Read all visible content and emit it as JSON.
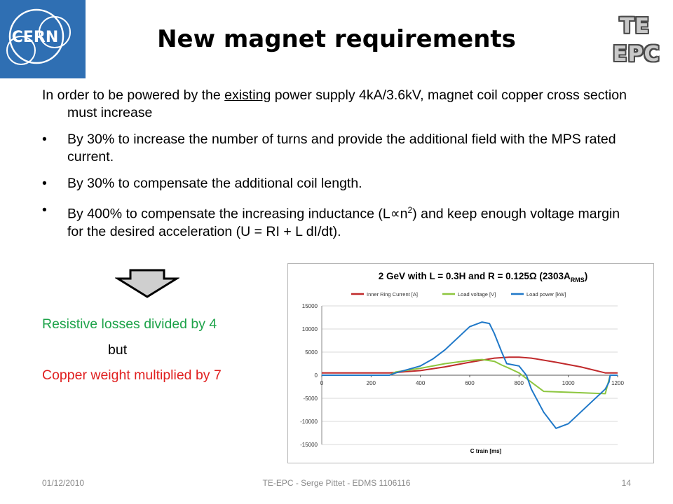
{
  "logos": {
    "cern_text": "CERN",
    "tepc_line1": "TE",
    "tepc_line2": "EPC"
  },
  "title": "New magnet requirements",
  "intro": {
    "before": "In order to be powered by the ",
    "underlined": "existing",
    "after": " power supply 4kA/3.6kV, magnet coil copper cross section must increase"
  },
  "bullets": [
    {
      "text": "By 30% to increase the number of turns and provide the additional field with the MPS rated current."
    },
    {
      "text": "By 30% to compensate the additional coil length."
    },
    {
      "before": "By 400% to compensate the increasing inductance (L",
      "symbol": "∝",
      "n": "n",
      "exp": "2",
      "after": ") and keep enough voltage margin for the desired acceleration (U = RI + L dI/dt)."
    }
  ],
  "bullet_char": "•",
  "results": {
    "line1": "Resistive losses divided by 4",
    "line2": "but",
    "line3": "Copper weight multiplied by 7",
    "line1_color": "#1ea34a",
    "line3_color": "#e02020"
  },
  "chart_data": {
    "type": "line",
    "title_main": "2 GeV with L = 0.3H and R = 0.125Ω (2303A",
    "title_sub": "RMS",
    "title_end": ")",
    "xlabel": "C train [ms]",
    "ylabel": "",
    "xlim": [
      0,
      1200
    ],
    "ylim": [
      -15000,
      15000
    ],
    "xticks": [
      0,
      200,
      400,
      600,
      800,
      1000,
      1200
    ],
    "yticks": [
      15000,
      10000,
      5000,
      0,
      -5000,
      -10000,
      -15000
    ],
    "grid": true,
    "legend_position": "top",
    "series": [
      {
        "name": "Inner Ring Current [A]",
        "color": "#c0292b",
        "x": [
          0,
          275,
          400,
          500,
          600,
          700,
          760,
          800,
          850,
          950,
          1050,
          1150,
          1200
        ],
        "y": [
          500,
          500,
          1000,
          1800,
          2800,
          3700,
          3900,
          3900,
          3700,
          2800,
          1800,
          500,
          500
        ]
      },
      {
        "name": "Load voltage [V]",
        "color": "#8dc63f",
        "x": [
          0,
          275,
          300,
          400,
          500,
          600,
          650,
          700,
          730,
          760,
          800,
          850,
          900,
          1000,
          1100,
          1150,
          1170,
          1200
        ],
        "y": [
          0,
          0,
          700,
          1500,
          2500,
          3200,
          3400,
          3000,
          2200,
          1500,
          500,
          -1500,
          -3500,
          -3700,
          -3900,
          -4000,
          0,
          0
        ]
      },
      {
        "name": "Load power [kW]",
        "color": "#1f78c8",
        "x": [
          0,
          275,
          300,
          400,
          450,
          500,
          550,
          600,
          650,
          680,
          700,
          730,
          750,
          780,
          800,
          830,
          850,
          900,
          950,
          1000,
          1050,
          1100,
          1150,
          1165,
          1170,
          1200
        ],
        "y": [
          0,
          0,
          500,
          2000,
          3500,
          5500,
          8000,
          10500,
          11500,
          11200,
          9000,
          5000,
          2500,
          2200,
          2000,
          0,
          -3000,
          -8000,
          -11500,
          -10500,
          -8000,
          -5500,
          -3000,
          -1500,
          0,
          0
        ]
      }
    ]
  },
  "footer": {
    "date": "01/12/2010",
    "center": "TE-EPC - Serge Pittet - EDMS 1106116",
    "page": "14"
  }
}
